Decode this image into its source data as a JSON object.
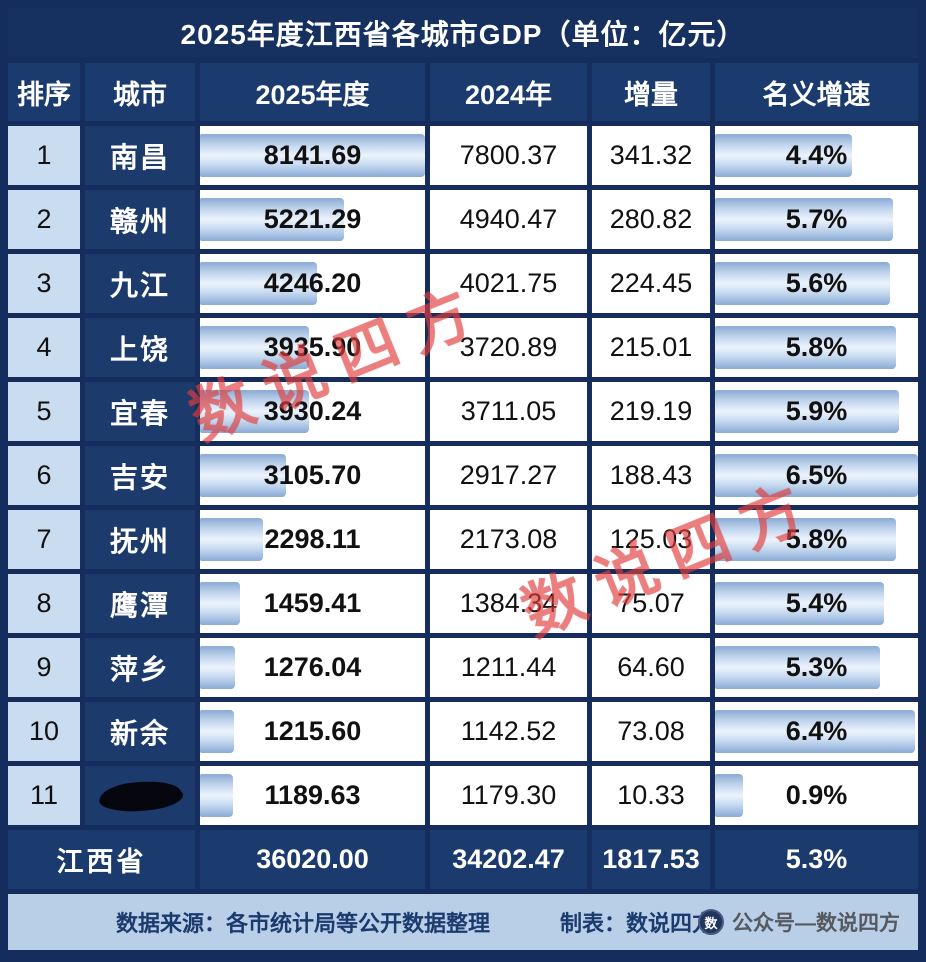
{
  "page": {
    "title": "2025年度江西省各城市GDP（单位：亿元）"
  },
  "table": {
    "columns": [
      "排序",
      "城市",
      "2025年度",
      "2024年",
      "增量",
      "名义增速"
    ],
    "rows": [
      {
        "rank": "1",
        "city": "南昌",
        "gdp_2025": "8141.69",
        "gdp_2024": "7800.37",
        "increment": "341.32",
        "growth": "4.4%"
      },
      {
        "rank": "2",
        "city": "赣州",
        "gdp_2025": "5221.29",
        "gdp_2024": "4940.47",
        "increment": "280.82",
        "growth": "5.7%"
      },
      {
        "rank": "3",
        "city": "九江",
        "gdp_2025": "4246.20",
        "gdp_2024": "4021.75",
        "increment": "224.45",
        "growth": "5.6%"
      },
      {
        "rank": "4",
        "city": "上饶",
        "gdp_2025": "3935.90",
        "gdp_2024": "3720.89",
        "increment": "215.01",
        "growth": "5.8%"
      },
      {
        "rank": "5",
        "city": "宜春",
        "gdp_2025": "3930.24",
        "gdp_2024": "3711.05",
        "increment": "219.19",
        "growth": "5.9%"
      },
      {
        "rank": "6",
        "city": "吉安",
        "gdp_2025": "3105.70",
        "gdp_2024": "2917.27",
        "increment": "188.43",
        "growth": "6.5%"
      },
      {
        "rank": "7",
        "city": "抚州",
        "gdp_2025": "2298.11",
        "gdp_2024": "2173.08",
        "increment": "125.03",
        "growth": "5.8%"
      },
      {
        "rank": "8",
        "city": "鹰潭",
        "gdp_2025": "1459.41",
        "gdp_2024": "1384.34",
        "increment": "75.07",
        "growth": "5.4%"
      },
      {
        "rank": "9",
        "city": "萍乡",
        "gdp_2025": "1276.04",
        "gdp_2024": "1211.44",
        "increment": "64.60",
        "growth": "5.3%"
      },
      {
        "rank": "10",
        "city": "新余",
        "gdp_2025": "1215.60",
        "gdp_2024": "1142.52",
        "increment": "73.08",
        "growth": "6.4%"
      },
      {
        "rank": "11",
        "city": "",
        "city_redacted": true,
        "gdp_2025": "1189.63",
        "gdp_2024": "1179.30",
        "increment": "10.33",
        "growth": "0.9%"
      }
    ],
    "total": {
      "label": "江西省",
      "gdp_2025": "36020.00",
      "gdp_2024": "34202.47",
      "increment": "1817.53",
      "growth": "5.3%"
    }
  },
  "footer": {
    "source": "数据来源：各市统计局等公开数据整理",
    "credit": "制表：数说四方",
    "logo_glyph": "数",
    "logo_text": "公众号—数说四方"
  },
  "watermark": {
    "text": "数说四方"
  },
  "colors": {
    "frame_navy": "#142d5c",
    "header_navy": "#1b3a6e",
    "rank_blue": "#c9dcf0",
    "bar_edge": "#8aabd4",
    "bar_center": "#ecf3fb",
    "footer_blue": "#b9cfe8",
    "watermark_red": "#e13e3e"
  },
  "chart_data": {
    "type": "table",
    "title": "2025年度江西省各城市GDP（单位：亿元）",
    "columns": [
      "排序",
      "城市",
      "2025年度",
      "2024年",
      "增量",
      "名义增速"
    ],
    "cities": [
      "南昌",
      "赣州",
      "九江",
      "上饶",
      "宜春",
      "吉安",
      "抚州",
      "鹰潭",
      "萍乡",
      "新余",
      "(涂黑)"
    ],
    "gdp_2025": [
      8141.69,
      5221.29,
      4246.2,
      3935.9,
      3930.24,
      3105.7,
      2298.11,
      1459.41,
      1276.04,
      1215.6,
      1189.63
    ],
    "gdp_2024": [
      7800.37,
      4940.47,
      4021.75,
      3720.89,
      3711.05,
      2917.27,
      2173.08,
      1384.34,
      1211.44,
      1142.52,
      1179.3
    ],
    "increment": [
      341.32,
      280.82,
      224.45,
      215.01,
      219.19,
      188.43,
      125.03,
      75.07,
      64.6,
      73.08,
      10.33
    ],
    "growth_pct": [
      4.4,
      5.7,
      5.6,
      5.8,
      5.9,
      6.5,
      5.8,
      5.4,
      5.3,
      6.4,
      0.9
    ],
    "bars": "gdp_2025 and growth_pct columns are rendered as horizontal blue bars proportional to max value",
    "total": {
      "region": "江西省",
      "gdp_2025": 36020.0,
      "gdp_2024": 34202.47,
      "increment": 1817.53,
      "growth_pct": 5.3
    }
  }
}
